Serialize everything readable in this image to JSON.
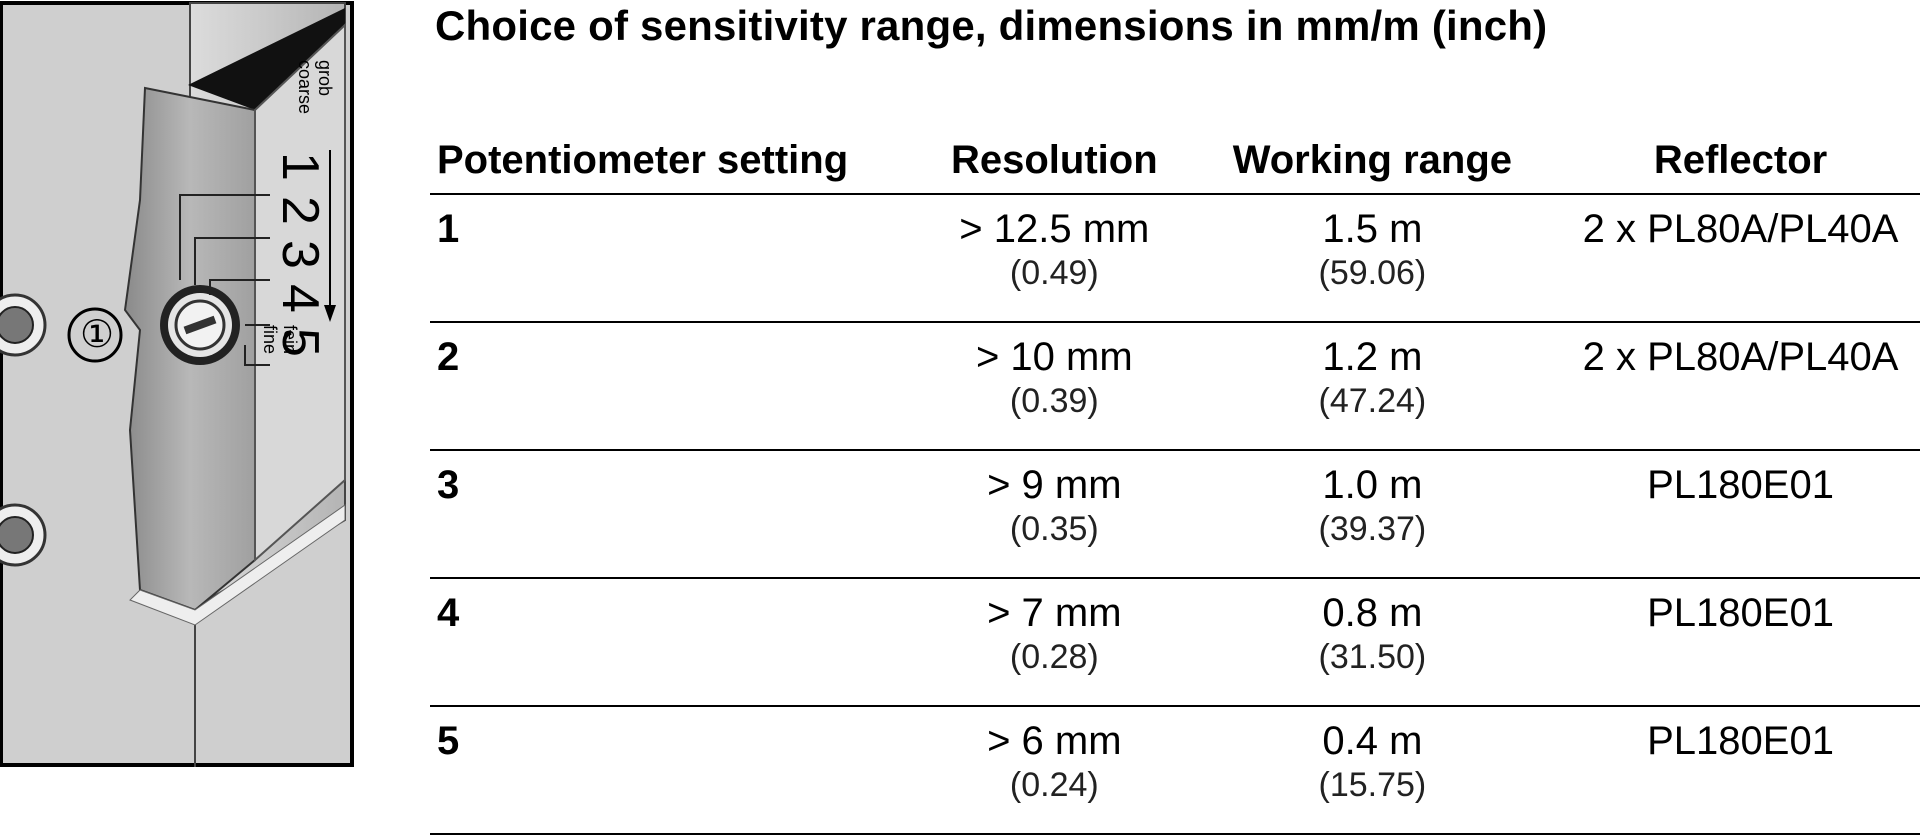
{
  "figure": {
    "callout_number": "①",
    "scale_top_label_1": "grob",
    "scale_top_label_2": "coarse",
    "scale_bottom_label_1": "fein",
    "scale_bottom_label_2": "fine",
    "scale_numbers": [
      "1",
      "2",
      "3",
      "4",
      "5"
    ]
  },
  "title": "Choice of sensitivity range, dimensions in mm/m (inch)",
  "table": {
    "headers": [
      "Potentiometer setting",
      "Resolution",
      "Working range",
      "Reflector"
    ],
    "rows": [
      {
        "setting": "1",
        "resolution": "> 12.5 mm",
        "resolution_in": "(0.49)",
        "range": "1.5 m",
        "range_in": "(59.06)",
        "reflector": "2 x PL80A/PL40A"
      },
      {
        "setting": "2",
        "resolution": "> 10 mm",
        "resolution_in": "(0.39)",
        "range": "1.2 m",
        "range_in": "(47.24)",
        "reflector": "2 x PL80A/PL40A"
      },
      {
        "setting": "3",
        "resolution": "> 9 mm",
        "resolution_in": "(0.35)",
        "range": "1.0 m",
        "range_in": "(39.37)",
        "reflector": "PL180E01"
      },
      {
        "setting": "4",
        "resolution": "> 7 mm",
        "resolution_in": "(0.28)",
        "range": "0.8 m",
        "range_in": "(31.50)",
        "reflector": "PL180E01"
      },
      {
        "setting": "5",
        "resolution": "> 6 mm",
        "resolution_in": "(0.24)",
        "range": "0.4 m",
        "range_in": "(15.75)",
        "reflector": "PL180E01"
      }
    ]
  }
}
